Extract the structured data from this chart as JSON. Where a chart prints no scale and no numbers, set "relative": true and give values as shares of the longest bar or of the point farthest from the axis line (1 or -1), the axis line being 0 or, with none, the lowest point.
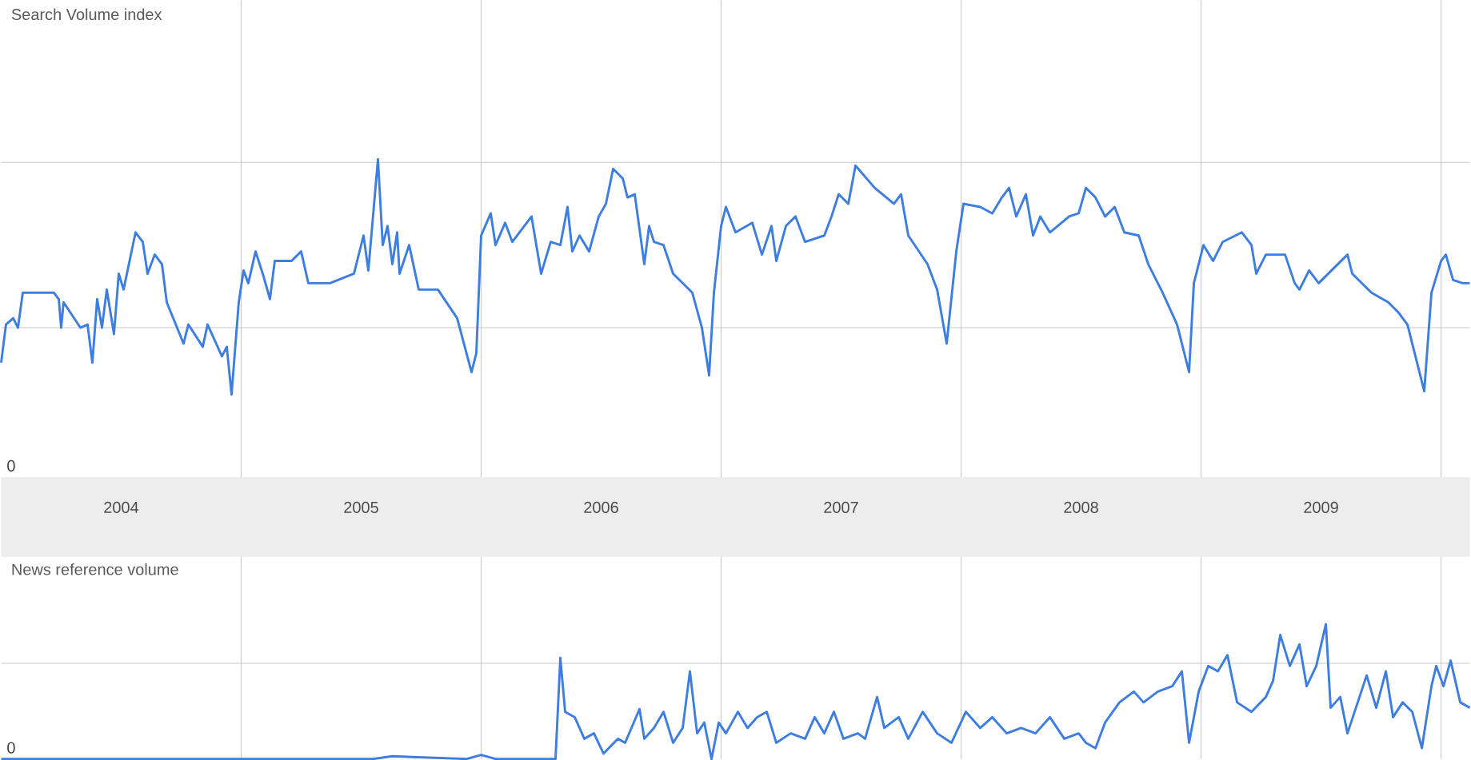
{
  "chart_data": [
    {
      "type": "line",
      "title": "Search Volume index",
      "relative": true,
      "color": "#3d7ee0",
      "tick_labels": "x",
      "xlim": [
        2004.0,
        2010.12
      ],
      "xticks": [
        {
          "value": 2004.5,
          "label": "2004"
        },
        {
          "value": 2005.5,
          "label": "2005"
        },
        {
          "value": 2006.5,
          "label": "2006"
        },
        {
          "value": 2007.5,
          "label": "2007"
        },
        {
          "value": 2008.5,
          "label": "2008"
        },
        {
          "value": 2009.5,
          "label": "2009"
        }
      ],
      "ref_lines": [
        {
          "axis": "x",
          "value": 2005,
          "color": "#c8c8c8"
        },
        {
          "axis": "x",
          "value": 2006,
          "color": "#c8c8c8"
        },
        {
          "axis": "x",
          "value": 2007,
          "color": "#c8c8c8"
        },
        {
          "axis": "x",
          "value": 2008,
          "color": "#c8c8c8"
        },
        {
          "axis": "x",
          "value": 2009,
          "color": "#c8c8c8"
        },
        {
          "axis": "x",
          "value": 2010,
          "color": "#c8c8c8"
        },
        {
          "axis": "y",
          "value": 0.47,
          "color": "#c8c8c8"
        },
        {
          "axis": "y",
          "value": 0.99,
          "color": "#c8c8c8"
        }
      ],
      "annotations": [
        "0"
      ],
      "x": [
        2004.0,
        2004.02,
        2004.05,
        2004.07,
        2004.09,
        2004.13,
        2004.22,
        2004.24,
        2004.25,
        2004.26,
        2004.33,
        2004.36,
        2004.38,
        2004.4,
        2004.42,
        2004.44,
        2004.47,
        2004.49,
        2004.51,
        2004.56,
        2004.59,
        2004.61,
        2004.64,
        2004.67,
        2004.69,
        2004.76,
        2004.78,
        2004.84,
        2004.86,
        2004.92,
        2004.94,
        2004.96,
        2004.99,
        2005.01,
        2005.03,
        2005.06,
        2005.09,
        2005.12,
        2005.14,
        2005.21,
        2005.25,
        2005.28,
        2005.37,
        2005.47,
        2005.51,
        2005.53,
        2005.57,
        2005.59,
        2005.61,
        2005.63,
        2005.65,
        2005.66,
        2005.7,
        2005.74,
        2005.82,
        2005.9,
        2005.96,
        2005.98,
        2006.0,
        2006.04,
        2006.06,
        2006.1,
        2006.13,
        2006.21,
        2006.25,
        2006.29,
        2006.33,
        2006.36,
        2006.38,
        2006.41,
        2006.45,
        2006.49,
        2006.52,
        2006.55,
        2006.59,
        2006.61,
        2006.64,
        2006.68,
        2006.7,
        2006.72,
        2006.76,
        2006.8,
        2006.88,
        2006.92,
        2006.95,
        2006.97,
        2007.0,
        2007.02,
        2007.06,
        2007.13,
        2007.17,
        2007.21,
        2007.23,
        2007.27,
        2007.31,
        2007.35,
        2007.43,
        2007.46,
        2007.49,
        2007.53,
        2007.56,
        2007.64,
        2007.72,
        2007.75,
        2007.78,
        2007.86,
        2007.9,
        2007.94,
        2007.98,
        2008.01,
        2008.08,
        2008.13,
        2008.17,
        2008.2,
        2008.23,
        2008.27,
        2008.3,
        2008.33,
        2008.37,
        2008.45,
        2008.49,
        2008.52,
        2008.56,
        2008.6,
        2008.64,
        2008.68,
        2008.74,
        2008.78,
        2008.84,
        2008.9,
        2008.95,
        2008.97,
        2009.01,
        2009.05,
        2009.09,
        2009.17,
        2009.21,
        2009.23,
        2009.27,
        2009.35,
        2009.39,
        2009.41,
        2009.45,
        2009.49,
        2009.61,
        2009.63,
        2009.71,
        2009.78,
        2009.82,
        2009.86,
        2009.9,
        2009.93,
        2009.96,
        2010.0,
        2010.02,
        2010.05,
        2010.09,
        2010.12
      ],
      "values": [
        0.36,
        0.48,
        0.5,
        0.47,
        0.58,
        0.58,
        0.58,
        0.56,
        0.47,
        0.55,
        0.47,
        0.48,
        0.36,
        0.56,
        0.47,
        0.59,
        0.45,
        0.64,
        0.59,
        0.77,
        0.74,
        0.64,
        0.7,
        0.67,
        0.55,
        0.42,
        0.48,
        0.41,
        0.48,
        0.38,
        0.41,
        0.26,
        0.55,
        0.65,
        0.61,
        0.71,
        0.64,
        0.56,
        0.68,
        0.68,
        0.71,
        0.61,
        0.61,
        0.64,
        0.76,
        0.65,
        1.0,
        0.73,
        0.79,
        0.67,
        0.77,
        0.64,
        0.73,
        0.59,
        0.59,
        0.5,
        0.33,
        0.39,
        0.76,
        0.83,
        0.73,
        0.8,
        0.74,
        0.82,
        0.64,
        0.74,
        0.73,
        0.85,
        0.71,
        0.76,
        0.71,
        0.82,
        0.86,
        0.97,
        0.94,
        0.88,
        0.89,
        0.67,
        0.79,
        0.74,
        0.73,
        0.64,
        0.58,
        0.47,
        0.32,
        0.58,
        0.79,
        0.85,
        0.77,
        0.8,
        0.7,
        0.79,
        0.68,
        0.79,
        0.82,
        0.74,
        0.76,
        0.82,
        0.89,
        0.86,
        0.98,
        0.91,
        0.86,
        0.89,
        0.76,
        0.67,
        0.59,
        0.42,
        0.71,
        0.86,
        0.85,
        0.83,
        0.88,
        0.91,
        0.82,
        0.89,
        0.76,
        0.82,
        0.77,
        0.82,
        0.83,
        0.91,
        0.88,
        0.82,
        0.85,
        0.77,
        0.76,
        0.67,
        0.58,
        0.48,
        0.33,
        0.61,
        0.73,
        0.68,
        0.74,
        0.77,
        0.73,
        0.64,
        0.7,
        0.7,
        0.61,
        0.59,
        0.65,
        0.61,
        0.7,
        0.64,
        0.58,
        0.55,
        0.52,
        0.48,
        0.36,
        0.27,
        0.58,
        0.68,
        0.7,
        0.62,
        0.61,
        0.61
      ]
    },
    {
      "type": "line",
      "title": "News reference volume",
      "relative": true,
      "color": "#3d7ee0",
      "tick_labels": false,
      "xlim": [
        2004.0,
        2010.12
      ],
      "ref_lines": [
        {
          "axis": "x",
          "value": 2005,
          "color": "#c8c8c8"
        },
        {
          "axis": "x",
          "value": 2006,
          "color": "#c8c8c8"
        },
        {
          "axis": "x",
          "value": 2007,
          "color": "#c8c8c8"
        },
        {
          "axis": "x",
          "value": 2008,
          "color": "#c8c8c8"
        },
        {
          "axis": "x",
          "value": 2009,
          "color": "#c8c8c8"
        },
        {
          "axis": "x",
          "value": 2010,
          "color": "#c8c8c8"
        },
        {
          "axis": "y",
          "value": 0.71,
          "color": "#c8c8c8"
        }
      ],
      "annotations": [
        "0"
      ],
      "x": [
        2004.0,
        2005.55,
        2005.63,
        2005.94,
        2006.0,
        2006.06,
        2006.31,
        2006.33,
        2006.35,
        2006.39,
        2006.43,
        2006.47,
        2006.51,
        2006.57,
        2006.6,
        2006.66,
        2006.68,
        2006.72,
        2006.76,
        2006.8,
        2006.84,
        2006.87,
        2006.9,
        2006.93,
        2006.96,
        2006.99,
        2007.02,
        2007.07,
        2007.11,
        2007.15,
        2007.19,
        2007.23,
        2007.29,
        2007.35,
        2007.39,
        2007.43,
        2007.47,
        2007.51,
        2007.57,
        2007.6,
        2007.65,
        2007.68,
        2007.74,
        2007.78,
        2007.84,
        2007.9,
        2007.96,
        2008.02,
        2008.08,
        2008.13,
        2008.19,
        2008.25,
        2008.31,
        2008.37,
        2008.43,
        2008.49,
        2008.52,
        2008.56,
        2008.6,
        2008.66,
        2008.72,
        2008.76,
        2008.82,
        2008.88,
        2008.92,
        2008.95,
        2008.99,
        2009.03,
        2009.07,
        2009.11,
        2009.15,
        2009.21,
        2009.27,
        2009.3,
        2009.33,
        2009.37,
        2009.41,
        2009.44,
        2009.48,
        2009.52,
        2009.54,
        2009.58,
        2009.61,
        2009.69,
        2009.73,
        2009.77,
        2009.8,
        2009.84,
        2009.88,
        2009.92,
        2009.96,
        2009.98,
        2010.01,
        2010.04,
        2010.08,
        2010.12
      ],
      "values": [
        0.0,
        0.0,
        0.02,
        0.0,
        0.03,
        0.0,
        0.0,
        0.75,
        0.35,
        0.31,
        0.15,
        0.19,
        0.04,
        0.15,
        0.12,
        0.37,
        0.15,
        0.23,
        0.35,
        0.12,
        0.23,
        0.65,
        0.19,
        0.27,
        0.0,
        0.27,
        0.19,
        0.35,
        0.23,
        0.31,
        0.35,
        0.12,
        0.19,
        0.15,
        0.31,
        0.19,
        0.35,
        0.15,
        0.19,
        0.15,
        0.46,
        0.23,
        0.31,
        0.15,
        0.35,
        0.19,
        0.12,
        0.35,
        0.23,
        0.31,
        0.19,
        0.23,
        0.19,
        0.31,
        0.15,
        0.19,
        0.12,
        0.08,
        0.27,
        0.42,
        0.5,
        0.42,
        0.5,
        0.54,
        0.65,
        0.12,
        0.5,
        0.69,
        0.65,
        0.77,
        0.42,
        0.35,
        0.46,
        0.58,
        0.92,
        0.69,
        0.85,
        0.54,
        0.69,
        1.0,
        0.38,
        0.46,
        0.19,
        0.62,
        0.38,
        0.65,
        0.31,
        0.42,
        0.35,
        0.08,
        0.54,
        0.69,
        0.54,
        0.73,
        0.42,
        0.38
      ]
    }
  ]
}
